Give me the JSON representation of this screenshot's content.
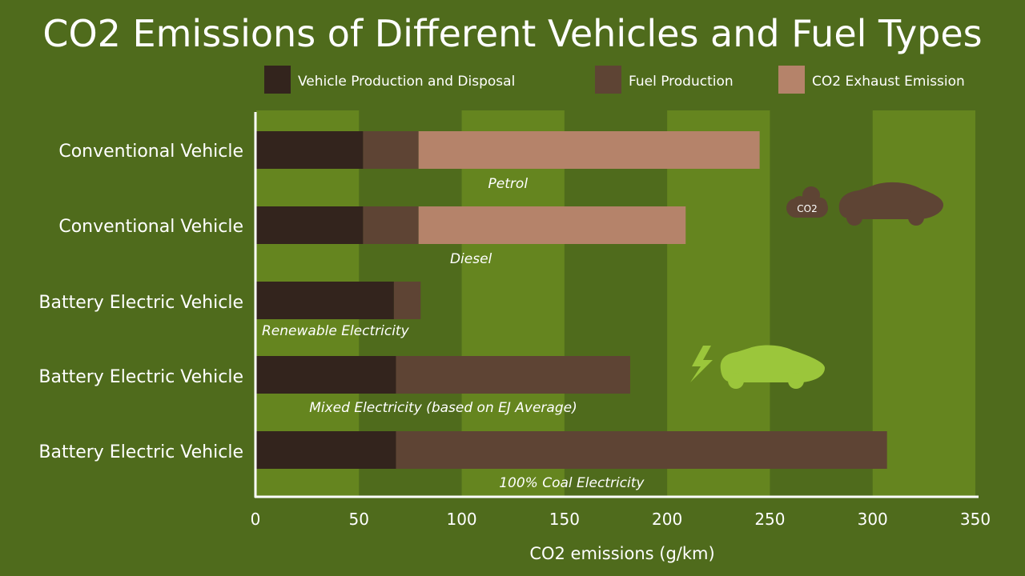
{
  "chart_data": {
    "type": "bar",
    "orientation": "horizontal",
    "stacked": true,
    "title": "CO2 Emissions of Different Vehicles and Fuel Types",
    "xlabel": "CO2 emissions (g/km)",
    "ylabel": "",
    "xlim": [
      0,
      350
    ],
    "xticks": [
      0,
      50,
      100,
      150,
      200,
      250,
      300,
      350
    ],
    "legend_position": "top",
    "categories": [
      "Conventional Vehicle",
      "Conventional Vehicle",
      "Battery Electric Vehicle",
      "Battery Electric Vehicle",
      "Battery Electric Vehicle"
    ],
    "bar_labels": [
      "Petrol",
      "Diesel",
      "Renewable Electricity",
      "Mixed Electricity (based on EJ Average)",
      "100% Coal Electricity"
    ],
    "series": [
      {
        "name": "Vehicle Production and Disposal",
        "color": "#33241d",
        "values": [
          52,
          52,
          67,
          68,
          68
        ]
      },
      {
        "name": "Fuel Production",
        "color": "#5e4434",
        "values": [
          27,
          27,
          13,
          114,
          239
        ]
      },
      {
        "name": "CO2 Exhaust Emission",
        "color": "#b5836a",
        "values": [
          166,
          130,
          0,
          0,
          0
        ]
      }
    ]
  },
  "decor": {
    "co2_badge_text": "CO2",
    "icons": [
      "co2-cloud-icon",
      "car-icon",
      "lightning-icon",
      "electric-car-icon"
    ],
    "colors": {
      "background": "#4f6b1c",
      "band_light": "#65851f",
      "axis": "#ffffff",
      "car_brown": "#5e4434",
      "ev_green": "#9bc63b"
    }
  }
}
